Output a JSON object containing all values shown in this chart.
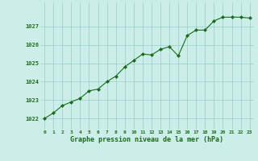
{
  "x": [
    0,
    1,
    2,
    3,
    4,
    5,
    6,
    7,
    8,
    9,
    10,
    11,
    12,
    13,
    14,
    15,
    16,
    17,
    18,
    19,
    20,
    21,
    22,
    23
  ],
  "y": [
    1022.0,
    1022.3,
    1022.7,
    1022.9,
    1023.1,
    1023.5,
    1023.6,
    1024.0,
    1024.3,
    1024.8,
    1025.15,
    1025.5,
    1025.45,
    1025.75,
    1025.9,
    1025.4,
    1026.5,
    1026.8,
    1026.8,
    1027.3,
    1027.5,
    1027.5,
    1027.5,
    1027.45
  ],
  "line_color": "#1a6b1a",
  "marker_color": "#1a6b1a",
  "bg_color": "#cceee8",
  "grid_color": "#99cccc",
  "xlabel": "Graphe pression niveau de la mer (hPa)",
  "xlabel_color": "#1a6b1a",
  "tick_color": "#1a6b1a",
  "yticks": [
    1022,
    1023,
    1024,
    1025,
    1026,
    1027
  ],
  "ylim": [
    1021.4,
    1028.3
  ],
  "xlim": [
    -0.5,
    23.5
  ],
  "xticks": [
    0,
    1,
    2,
    3,
    4,
    5,
    6,
    7,
    8,
    9,
    10,
    11,
    12,
    13,
    14,
    15,
    16,
    17,
    18,
    19,
    20,
    21,
    22,
    23
  ]
}
